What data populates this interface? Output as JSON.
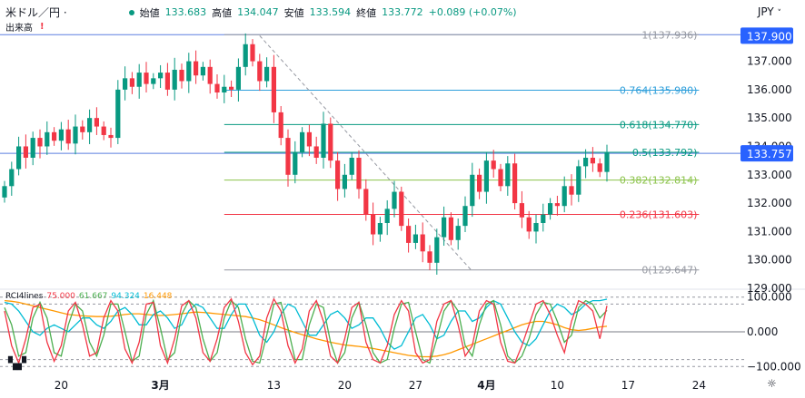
{
  "header": {
    "symbol": "米ドル／円 ·",
    "open_label": "始値",
    "open": "133.683",
    "high_label": "高値",
    "high": "134.047",
    "low_label": "安値",
    "low": "133.594",
    "close_label": "終値",
    "close": "133.772",
    "change": "+0.089 (+0.07%)",
    "volume_label": "出来高",
    "volume_warning": "!"
  },
  "currency": {
    "label": "JPY",
    "chevron": "˅"
  },
  "colors": {
    "up": "#089981",
    "down": "#f23645",
    "hline": "#5b7fe0",
    "fib_grey": "#9598a1",
    "fib_red": "#f23645",
    "fib_lime": "#8bc34a",
    "fib_teal": "#089981",
    "fib_sky": "#2f9fdb",
    "rci_short": "#f23645",
    "rci_mid": "#4caf50",
    "rci_long": "#00bcd4",
    "rci_extra": "#ff9800",
    "badge": "#2962ff"
  },
  "chart_data": [
    {
      "type": "candlestick",
      "ylim": [
        129.0,
        138.2
      ],
      "y_ticks": [
        "129.000",
        "130.000",
        "131.000",
        "132.000",
        "133.000",
        "134.000",
        "135.000",
        "136.000",
        "137.000"
      ],
      "x_ticks": [
        {
          "label": "20",
          "i": 8
        },
        {
          "label": "3月",
          "i": 22
        },
        {
          "label": "13",
          "i": 38
        },
        {
          "label": "20",
          "i": 48
        },
        {
          "label": "27",
          "i": 58
        },
        {
          "label": "4月",
          "i": 68
        },
        {
          "label": "10",
          "i": 78
        },
        {
          "label": "17",
          "i": 88
        },
        {
          "label": "24",
          "i": 98
        }
      ],
      "closes": [
        132.6,
        133.2,
        134.0,
        133.6,
        134.3,
        134.0,
        134.5,
        134.2,
        134.6,
        134.1,
        134.7,
        134.5,
        135.0,
        134.7,
        134.4,
        134.3,
        136.0,
        136.4,
        136.1,
        136.6,
        136.2,
        136.4,
        136.6,
        136.0,
        136.7,
        136.3,
        137.0,
        136.5,
        136.8,
        136.2,
        135.9,
        136.1,
        136.0,
        136.8,
        137.6,
        137.0,
        136.3,
        136.8,
        135.2,
        134.3,
        133.0,
        133.8,
        134.5,
        134.0,
        133.6,
        134.8,
        133.5,
        132.5,
        133.0,
        133.6,
        132.5,
        131.6,
        130.9,
        131.3,
        131.8,
        132.4,
        131.2,
        130.6,
        130.9,
        130.3,
        129.9,
        130.8,
        131.5,
        130.7,
        131.2,
        131.9,
        133.0,
        132.4,
        133.5,
        133.2,
        132.6,
        133.4,
        132.0,
        131.5,
        131.0,
        131.3,
        131.6,
        132.0,
        131.9,
        132.6,
        132.3,
        133.3,
        133.6,
        133.4,
        133.1,
        133.8
      ],
      "current": 133.757,
      "badge_top": "137.900",
      "badge_current": "133.757",
      "hlines": [
        137.936,
        133.757
      ],
      "fib": [
        {
          "level": "1",
          "price": "137.936",
          "y": 137.936
        },
        {
          "level": "0.764",
          "price": "135.980",
          "y": 135.98
        },
        {
          "level": "0.618",
          "price": "134.770",
          "y": 134.77
        },
        {
          "level": "0.5",
          "price": "133.792",
          "y": 133.792
        },
        {
          "level": "0.382",
          "price": "132.814",
          "y": 132.814
        },
        {
          "level": "0.236",
          "price": "131.603",
          "y": 131.603
        },
        {
          "level": "0",
          "price": "129.647",
          "y": 129.647
        }
      ],
      "trendline": [
        {
          "i": 36,
          "y": 137.9
        },
        {
          "i": 66,
          "y": 129.6
        }
      ]
    },
    {
      "type": "line",
      "title": "RCI4lines",
      "values_text": [
        "75.000",
        "61.667",
        "94.324",
        "16.448"
      ],
      "ylim": [
        -115,
        115
      ],
      "y_ticks": [
        "100.000",
        "0.000",
        "−100.000"
      ],
      "levels": [
        100,
        80,
        0,
        -80,
        -100
      ],
      "series": [
        {
          "values": [
            60,
            -40,
            -90,
            -20,
            70,
            80,
            -30,
            -85,
            -40,
            60,
            85,
            20,
            -70,
            -60,
            40,
            90,
            60,
            -50,
            -90,
            -30,
            80,
            85,
            -40,
            -90,
            -20,
            75,
            90,
            40,
            -60,
            -85,
            -20,
            70,
            95,
            30,
            -60,
            -95,
            -70,
            40,
            95,
            60,
            -40,
            -90,
            -50,
            60,
            90,
            30,
            -70,
            -90,
            -20,
            70,
            85,
            -30,
            -80,
            -90,
            -40,
            50,
            90,
            60,
            -60,
            -90,
            -80,
            30,
            80,
            90,
            20,
            -70,
            -40,
            60,
            90,
            80,
            -30,
            -85,
            -90,
            -40,
            20,
            80,
            90,
            50,
            -10,
            -60,
            30,
            90,
            80,
            60,
            -20,
            75
          ]
        },
        {
          "values": [
            70,
            20,
            -70,
            -60,
            40,
            85,
            40,
            -60,
            -70,
            20,
            80,
            60,
            -30,
            -70,
            -10,
            80,
            80,
            0,
            -85,
            -70,
            50,
            90,
            10,
            -80,
            -60,
            50,
            90,
            70,
            -20,
            -85,
            -60,
            40,
            90,
            70,
            -20,
            -85,
            -90,
            -10,
            80,
            85,
            10,
            -80,
            -80,
            20,
            80,
            70,
            -30,
            -90,
            -60,
            40,
            85,
            20,
            -60,
            -90,
            -80,
            10,
            80,
            85,
            0,
            -80,
            -90,
            -20,
            60,
            90,
            60,
            -40,
            -70,
            20,
            80,
            90,
            20,
            -70,
            -90,
            -70,
            -20,
            50,
            85,
            80,
            30,
            -30,
            -10,
            70,
            90,
            80,
            40,
            62
          ]
        },
        {
          "values": [
            85,
            80,
            60,
            30,
            0,
            -10,
            10,
            20,
            10,
            0,
            20,
            40,
            40,
            20,
            10,
            30,
            60,
            70,
            50,
            20,
            20,
            50,
            60,
            40,
            10,
            20,
            60,
            80,
            70,
            40,
            10,
            10,
            50,
            80,
            80,
            40,
            -10,
            -30,
            0,
            50,
            80,
            70,
            30,
            -10,
            -10,
            20,
            50,
            60,
            40,
            10,
            20,
            40,
            40,
            10,
            -30,
            -50,
            -40,
            0,
            40,
            50,
            20,
            -20,
            -10,
            30,
            60,
            60,
            30,
            40,
            70,
            90,
            80,
            40,
            0,
            -30,
            -40,
            -20,
            20,
            60,
            80,
            70,
            50,
            60,
            80,
            90,
            90,
            94
          ]
        },
        {
          "values": [
            90,
            88,
            85,
            80,
            75,
            70,
            65,
            60,
            55,
            50,
            48,
            46,
            45,
            44,
            44,
            45,
            47,
            50,
            52,
            52,
            50,
            48,
            47,
            48,
            50,
            52,
            55,
            57,
            56,
            54,
            52,
            50,
            48,
            46,
            44,
            40,
            35,
            28,
            20,
            12,
            5,
            -2,
            -8,
            -14,
            -20,
            -25,
            -30,
            -34,
            -38,
            -40,
            -42,
            -45,
            -48,
            -52,
            -56,
            -60,
            -64,
            -68,
            -70,
            -72,
            -72,
            -70,
            -66,
            -60,
            -52,
            -44,
            -36,
            -28,
            -20,
            -12,
            -4,
            4,
            12,
            20,
            26,
            30,
            30,
            26,
            20,
            12,
            6,
            4,
            6,
            10,
            14,
            16
          ]
        }
      ]
    }
  ]
}
